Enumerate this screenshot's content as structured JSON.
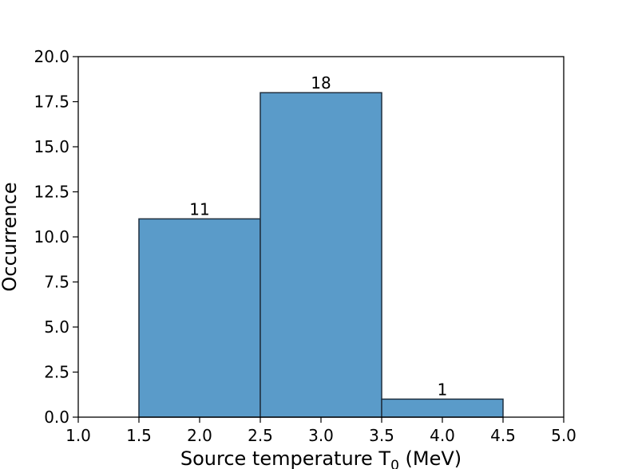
{
  "chart_data": {
    "type": "bar",
    "bins": [
      {
        "x0": 1.5,
        "x1": 2.5,
        "value": 11,
        "label": "11"
      },
      {
        "x0": 2.5,
        "x1": 3.5,
        "value": 18,
        "label": "18"
      },
      {
        "x0": 3.5,
        "x1": 4.5,
        "value": 1,
        "label": "1"
      }
    ],
    "xlabel": "Source temperature T",
    "xlabel_subscript": "0",
    "xlabel_suffix": " (MeV)",
    "ylabel": "Occurrence",
    "xlim": [
      1.0,
      5.0
    ],
    "ylim": [
      0.0,
      20.0
    ],
    "xticks": [
      "1.0",
      "1.5",
      "2.0",
      "2.5",
      "3.0",
      "3.5",
      "4.0",
      "4.5",
      "5.0"
    ],
    "yticks": [
      "0.0",
      "2.5",
      "5.0",
      "7.5",
      "10.0",
      "12.5",
      "15.0",
      "17.5",
      "20.0"
    ],
    "grid": false,
    "colors": {
      "bar": "#5a9bc9",
      "edge": "#1f2f3f",
      "axis": "#000000"
    }
  }
}
